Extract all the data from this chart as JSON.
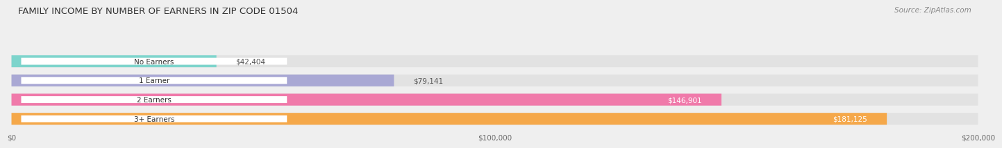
{
  "title": "FAMILY INCOME BY NUMBER OF EARNERS IN ZIP CODE 01504",
  "source": "Source: ZipAtlas.com",
  "categories": [
    "No Earners",
    "1 Earner",
    "2 Earners",
    "3+ Earners"
  ],
  "values": [
    42404,
    79141,
    146901,
    181125
  ],
  "bar_colors": [
    "#7dd4cc",
    "#a9a8d4",
    "#f07aaa",
    "#f5a84a"
  ],
  "bar_labels": [
    "$42,404",
    "$79,141",
    "$146,901",
    "$181,125"
  ],
  "xlim": [
    0,
    200000
  ],
  "xticks": [
    0,
    100000,
    200000
  ],
  "xtick_labels": [
    "$0",
    "$100,000",
    "$200,000"
  ],
  "background_color": "#efefef",
  "bar_bg_color": "#e2e2e2",
  "label_bg_color": "#ffffff"
}
